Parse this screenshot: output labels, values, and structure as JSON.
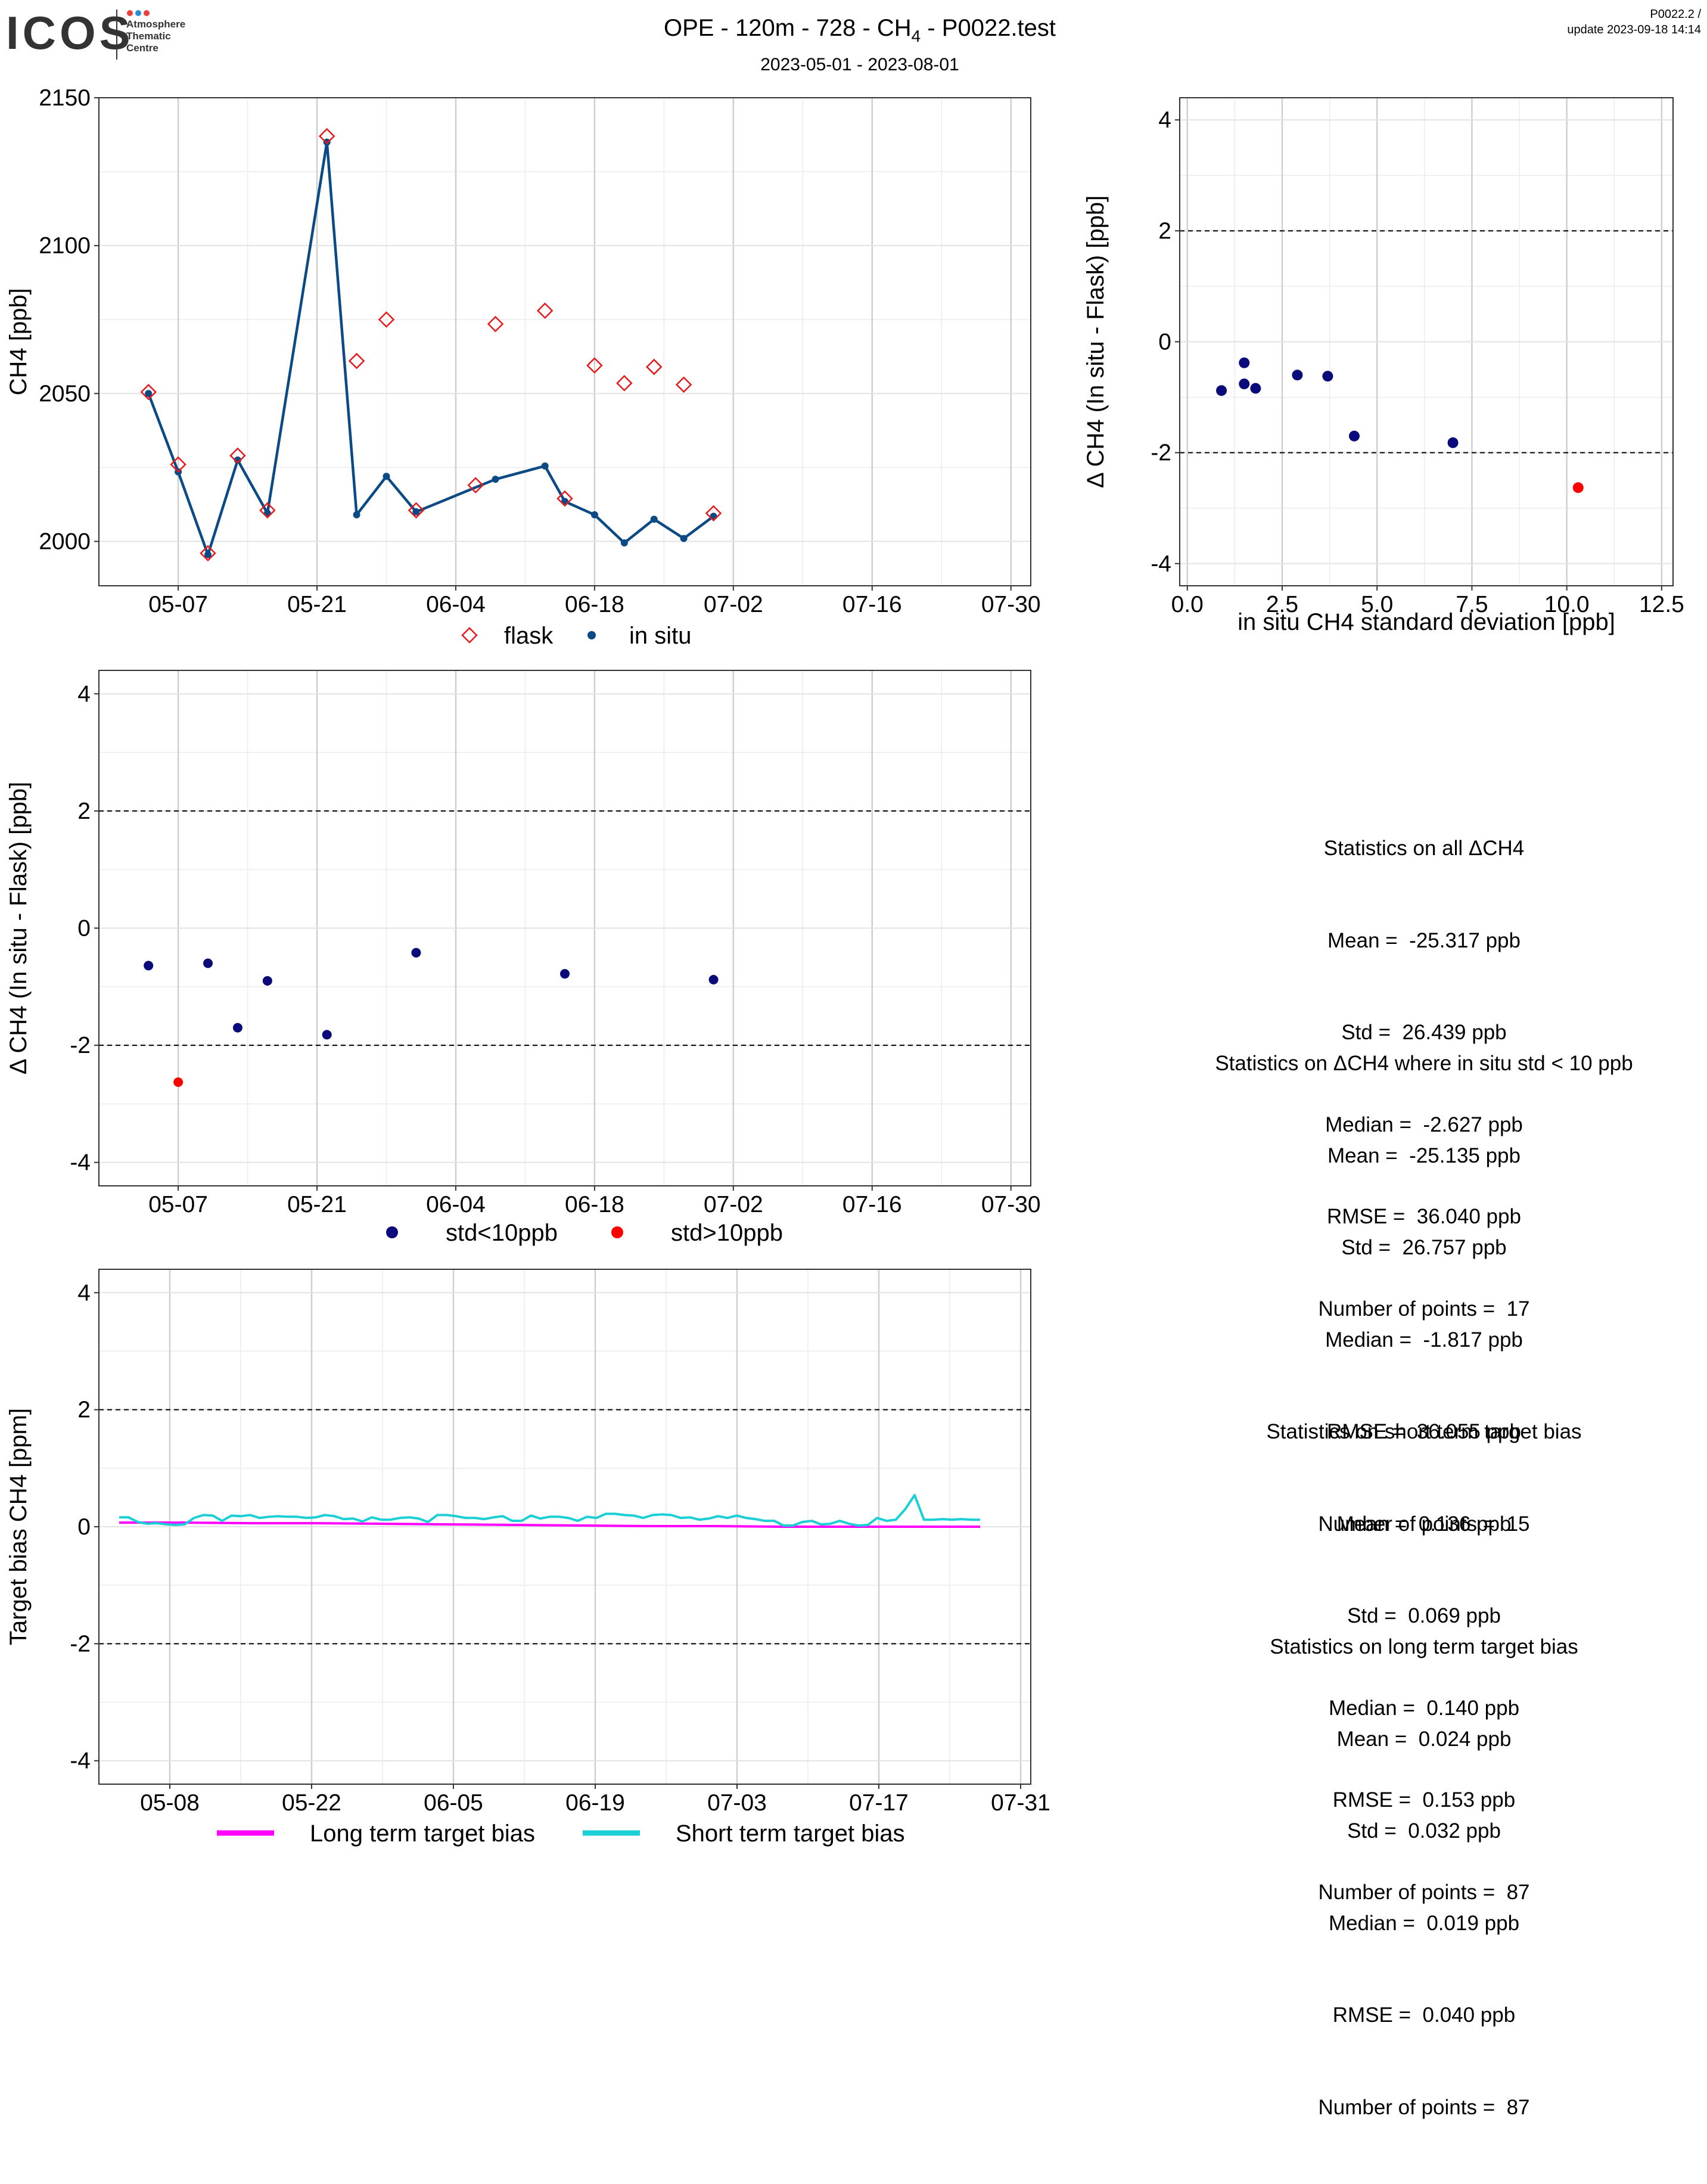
{
  "header": {
    "logo_text": "ICOS",
    "logo_sub": [
      "Atmosphere",
      "Thematic",
      "Centre"
    ],
    "title": "OPE - 120m - 728 - CH",
    "title_sub": "4",
    "title_tail": " - P0022.test",
    "date_range": "2023-05-01 - 2023-08-01",
    "version": "P0022.2 /",
    "update": "update  2023-09-18 14:14"
  },
  "colors": {
    "flask": "#e41a1c",
    "in_situ": "#0c4a85",
    "std_low": "#0a0a7a",
    "std_high": "#ff0000",
    "long_term": "#ff00ff",
    "short_term": "#1ccfd6"
  },
  "stats_delta": {
    "all": [
      "Statistics on all ΔCH4",
      "Mean =  -25.317 ppb",
      "Std =  26.439 ppb",
      "Median =  -2.627 ppb",
      "RMSE =  36.040 ppb",
      "Number of points =  17"
    ],
    "filtered": [
      "Statistics on ΔCH4 where in situ std < 10 ppb",
      "Mean =  -25.135 ppb",
      "Std =  26.757 ppb",
      "Median =  -1.817 ppb",
      "RMSE =  36.055 ppb",
      "Number of points =  15"
    ]
  },
  "stats_bias": {
    "short": [
      "Statistics on short term target bias",
      "Mean =  0.136 ppb",
      "Std =  0.069 ppb",
      "Median =  0.140 ppb",
      "RMSE =  0.153 ppb",
      "Number of points =  87"
    ],
    "long": [
      "Statistics on long term target bias",
      "Mean =  0.024 ppb",
      "Std =  0.032 ppb",
      "Median =  0.019 ppb",
      "RMSE =  0.040 ppb",
      "Number of points =  87"
    ]
  },
  "chart_data": [
    {
      "type": "line",
      "title": "OPE - 120m - 728 - CH4 - P0022.test",
      "ylabel": "CH4 [ppb]",
      "xlabel": "",
      "xlim": [
        "2023-04-29",
        "2023-08-01"
      ],
      "ylim": [
        1985,
        2150
      ],
      "xticks": [
        "05-07",
        "05-21",
        "06-04",
        "06-18",
        "07-02",
        "07-16",
        "07-30"
      ],
      "yticks": [
        2000,
        2050,
        2100,
        2150
      ],
      "grid": true,
      "legend_position": "bottom",
      "series": [
        {
          "name": "flask",
          "marker": "diamond",
          "x": [
            "2023-05-04",
            "2023-05-07",
            "2023-05-10",
            "2023-05-13",
            "2023-05-16",
            "2023-05-22",
            "2023-05-25",
            "2023-05-28",
            "2023-05-31",
            "2023-06-06",
            "2023-06-08",
            "2023-06-13",
            "2023-06-15",
            "2023-06-18",
            "2023-06-21",
            "2023-06-24",
            "2023-06-27",
            "2023-06-30"
          ],
          "y": [
            2050.5,
            2026,
            1996,
            2029,
            2010.5,
            2137,
            2061,
            2075,
            2010.5,
            2019,
            2073.5,
            2078,
            2014.5,
            2059.5,
            2053.5,
            2059,
            2053,
            2009.5
          ]
        },
        {
          "name": "in situ",
          "marker": "dot",
          "x": [
            "2023-05-04",
            "2023-05-07",
            "2023-05-10",
            "2023-05-13",
            "2023-05-16",
            "2023-05-22",
            "2023-05-25",
            "2023-05-28",
            "2023-05-31",
            "2023-06-08",
            "2023-06-13",
            "2023-06-15",
            "2023-06-18",
            "2023-06-21",
            "2023-06-24",
            "2023-06-27",
            "2023-06-30"
          ],
          "y": [
            2050,
            2023.5,
            1995.5,
            2027.5,
            2009.5,
            2135,
            2009,
            2022,
            2010,
            2021,
            2025.5,
            2013.5,
            2009,
            1999.5,
            2007.5,
            2001,
            2008.5
          ]
        }
      ]
    },
    {
      "type": "scatter",
      "title": "",
      "xlabel": "in situ CH4 standard deviation [ppb]",
      "ylabel": "Δ CH4 (In situ - Flask) [ppb]",
      "xlim": [
        -0.2,
        12.8
      ],
      "ylim": [
        -4.4,
        4.4
      ],
      "xticks": [
        "0.0",
        "2.5",
        "5.0",
        "7.5",
        "10.0",
        "12.5"
      ],
      "yticks": [
        -4,
        -2,
        0,
        2,
        4
      ],
      "hlines": [
        -2,
        2
      ],
      "grid": true,
      "series": [
        {
          "name": "std<10ppb",
          "x": [
            0.9,
            1.5,
            1.5,
            1.8,
            2.9,
            3.7,
            4.4,
            7.0
          ],
          "y": [
            -0.88,
            -0.38,
            -0.76,
            -0.84,
            -0.6,
            -0.62,
            -1.7,
            -1.82
          ]
        },
        {
          "name": "std>10ppb",
          "x": [
            10.3
          ],
          "y": [
            -2.63
          ]
        }
      ]
    },
    {
      "type": "scatter",
      "title": "",
      "xlabel": "",
      "ylabel": "Δ CH4 (In situ - Flask) [ppb]",
      "xlim": [
        "2023-04-29",
        "2023-08-01"
      ],
      "ylim": [
        -4.4,
        4.4
      ],
      "xticks": [
        "05-07",
        "05-21",
        "06-04",
        "06-18",
        "07-02",
        "07-16",
        "07-30"
      ],
      "yticks": [
        -4,
        -2,
        0,
        2,
        4
      ],
      "hlines": [
        -2,
        2
      ],
      "grid": true,
      "legend_position": "bottom",
      "series": [
        {
          "name": "std<10ppb",
          "x": [
            "2023-05-04",
            "2023-05-10",
            "2023-05-13",
            "2023-05-16",
            "2023-05-22",
            "2023-05-31",
            "2023-06-15",
            "2023-06-30"
          ],
          "y": [
            -0.64,
            -0.6,
            -1.7,
            -0.9,
            -1.82,
            -0.42,
            -0.78,
            -0.88
          ]
        },
        {
          "name": "std>10ppb",
          "x": [
            "2023-05-07"
          ],
          "y": [
            -2.63
          ]
        }
      ]
    },
    {
      "type": "line",
      "title": "",
      "xlabel": "",
      "ylabel": "Target bias CH4 [ppm]",
      "xlim": [
        "2023-05-01",
        "2023-08-01"
      ],
      "ylim": [
        -4.4,
        4.4
      ],
      "xticks": [
        "05-08",
        "05-22",
        "06-05",
        "06-19",
        "07-03",
        "07-17",
        "07-31"
      ],
      "yticks": [
        -4,
        -2,
        0,
        2,
        4
      ],
      "hlines": [
        -2,
        2
      ],
      "grid": true,
      "legend_position": "bottom",
      "series": [
        {
          "name": "Long term target bias",
          "x_start": "2023-05-03",
          "x_end": "2023-07-27",
          "y": [
            0.07,
            0.07,
            0.06,
            0.06,
            0.05,
            0.04,
            0.03,
            0.02,
            0.01,
            0.01,
            0.0,
            0.0,
            0.0,
            0.0
          ]
        },
        {
          "name": "Short term target bias",
          "x_start": "2023-05-03",
          "x_end": "2023-07-27",
          "y": [
            0.16,
            0.16,
            0.08,
            0.05,
            0.06,
            0.04,
            0.03,
            0.04,
            0.15,
            0.2,
            0.19,
            0.1,
            0.19,
            0.18,
            0.2,
            0.15,
            0.17,
            0.18,
            0.17,
            0.17,
            0.15,
            0.16,
            0.2,
            0.18,
            0.13,
            0.14,
            0.09,
            0.16,
            0.12,
            0.12,
            0.15,
            0.16,
            0.14,
            0.08,
            0.2,
            0.2,
            0.18,
            0.15,
            0.15,
            0.13,
            0.16,
            0.18,
            0.1,
            0.1,
            0.19,
            0.14,
            0.17,
            0.17,
            0.15,
            0.1,
            0.17,
            0.15,
            0.22,
            0.22,
            0.2,
            0.19,
            0.15,
            0.2,
            0.21,
            0.2,
            0.15,
            0.16,
            0.12,
            0.14,
            0.18,
            0.15,
            0.19,
            0.15,
            0.13,
            0.1,
            0.1,
            0.02,
            0.02,
            0.08,
            0.1,
            0.04,
            0.05,
            0.1,
            0.05,
            0.02,
            0.03,
            0.15,
            0.1,
            0.12,
            0.3,
            0.54,
            0.12,
            0.12,
            0.13,
            0.12,
            0.13,
            0.12,
            0.12
          ]
        }
      ]
    }
  ]
}
